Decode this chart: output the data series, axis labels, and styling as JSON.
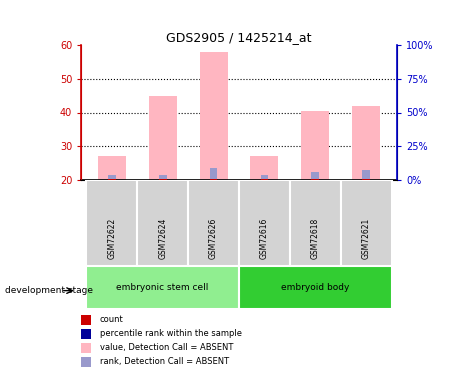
{
  "title": "GDS2905 / 1425214_at",
  "samples": [
    "GSM72622",
    "GSM72624",
    "GSM72626",
    "GSM72616",
    "GSM72618",
    "GSM72621"
  ],
  "groups": [
    {
      "label": "embryonic stem cell",
      "color": "#90EE90",
      "indices": [
        0,
        1,
        2
      ]
    },
    {
      "label": "embryoid body",
      "color": "#32CD32",
      "indices": [
        3,
        4,
        5
      ]
    }
  ],
  "value_bars": [
    27,
    45,
    58,
    27,
    40.5,
    42
  ],
  "rank_bars": [
    21.5,
    21.5,
    23.5,
    21.5,
    22.5,
    23
  ],
  "count_bars": [
    20.3,
    20.3,
    20.3,
    20.3,
    20.3,
    20.3
  ],
  "bar_color_value": "#FFB6C1",
  "bar_color_rank": "#9999CC",
  "bar_color_count": "#CC0000",
  "ylim_left": [
    20,
    60
  ],
  "ylim_right": [
    0,
    100
  ],
  "yticks_left": [
    20,
    30,
    40,
    50,
    60
  ],
  "yticks_right": [
    0,
    25,
    50,
    75,
    100
  ],
  "ytick_labels_left": [
    "20",
    "30",
    "40",
    "50",
    "60"
  ],
  "ytick_labels_right": [
    "0%",
    "25%",
    "50%",
    "75%",
    "100%"
  ],
  "grid_lines": [
    30,
    40,
    50
  ],
  "bar_width": 0.55,
  "legend_items": [
    {
      "color": "#CC0000",
      "label": "count"
    },
    {
      "color": "#000099",
      "label": "percentile rank within the sample"
    },
    {
      "color": "#FFB6C1",
      "label": "value, Detection Call = ABSENT"
    },
    {
      "color": "#9999CC",
      "label": "rank, Detection Call = ABSENT"
    }
  ],
  "development_stage_label": "development stage",
  "axis_left_color": "#CC0000",
  "axis_right_color": "#0000CC"
}
